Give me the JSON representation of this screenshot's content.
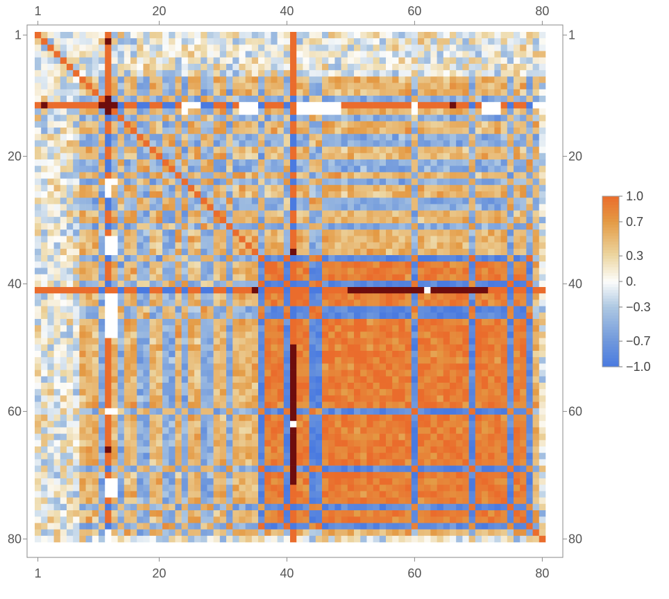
{
  "chart_data": {
    "type": "heatmap",
    "title": "",
    "xlabel": "",
    "ylabel": "",
    "rows": 80,
    "cols": 80,
    "symmetric": true,
    "x_ticks": [
      1,
      20,
      40,
      60,
      80
    ],
    "y_ticks": [
      1,
      20,
      40,
      60,
      80
    ],
    "x_tick_labels": [
      "1",
      "20",
      "40",
      "60",
      "80"
    ],
    "y_tick_labels": [
      "1",
      "20",
      "40",
      "60",
      "80"
    ],
    "ticks_on": [
      "top",
      "bottom",
      "left",
      "right"
    ],
    "value_range": [
      -1.0,
      1.0
    ],
    "colorbar": {
      "position": "right",
      "tick_values": [
        1.0,
        0.7,
        0.3,
        0.0,
        -0.3,
        -0.7,
        -1.0
      ],
      "tick_labels": [
        "1.0",
        "0.7",
        "0.3",
        "0.",
        "−0.3",
        "−0.7",
        "−1.0"
      ],
      "color_stops": [
        {
          "value": -1.0,
          "color": "#4a7ae0"
        },
        {
          "value": -0.7,
          "color": "#6f98dc"
        },
        {
          "value": -0.3,
          "color": "#aec8e2"
        },
        {
          "value": 0.0,
          "color": "#fdfdfb"
        },
        {
          "value": 0.3,
          "color": "#ecd6a2"
        },
        {
          "value": 0.7,
          "color": "#e49a44"
        },
        {
          "value": 1.0,
          "color": "#ea6c2c"
        }
      ]
    },
    "special_colors": {
      "missing": "#ffffff",
      "out_of_range": "#6e0d0d"
    },
    "diagonal_value": 1.0,
    "block_group": [
      8,
      9,
      10,
      12,
      13,
      15,
      16,
      19,
      20,
      23,
      25,
      26,
      29,
      30,
      32,
      33,
      34,
      35,
      37,
      38,
      39,
      41,
      42,
      43,
      46,
      47,
      48,
      49,
      50,
      51,
      52,
      53,
      54,
      55,
      56,
      57,
      58,
      59,
      61,
      62,
      63,
      64,
      65,
      66,
      67,
      68,
      70,
      71,
      72,
      73,
      74,
      76,
      77,
      79
    ],
    "anti_group": [
      11,
      14,
      17,
      18,
      21,
      22,
      24,
      27,
      28,
      31,
      36,
      40,
      44,
      45,
      60,
      69,
      75,
      78
    ],
    "strong_blocks": [
      {
        "from": 36,
        "to": 78,
        "value": 0.85
      }
    ],
    "special_rows": [
      {
        "row": 12,
        "mode": "saturated"
      },
      {
        "row": 41,
        "mode": "saturated"
      }
    ],
    "missing_cells": [
      [
        12,
        24
      ],
      [
        12,
        25
      ],
      [
        12,
        26
      ],
      [
        12,
        33
      ],
      [
        12,
        34
      ],
      [
        12,
        35
      ],
      [
        12,
        42
      ],
      [
        12,
        43
      ],
      [
        12,
        44
      ],
      [
        12,
        45
      ],
      [
        12,
        46
      ],
      [
        12,
        47
      ],
      [
        12,
        48
      ],
      [
        12,
        60
      ],
      [
        12,
        71
      ],
      [
        12,
        72
      ],
      [
        12,
        73
      ],
      [
        12,
        79
      ],
      [
        12,
        80
      ],
      [
        13,
        24
      ],
      [
        13,
        33
      ],
      [
        13,
        34
      ],
      [
        13,
        35
      ],
      [
        13,
        42
      ],
      [
        13,
        43
      ],
      [
        13,
        44
      ],
      [
        13,
        45
      ],
      [
        13,
        46
      ],
      [
        13,
        47
      ],
      [
        13,
        48
      ],
      [
        13,
        60
      ],
      [
        13,
        71
      ],
      [
        13,
        72
      ],
      [
        13,
        73
      ],
      [
        41,
        62
      ]
    ],
    "out_of_range_cells": [
      [
        12,
        2
      ],
      [
        12,
        11
      ],
      [
        12,
        12
      ],
      [
        12,
        13
      ],
      [
        12,
        66
      ],
      [
        41,
        35
      ],
      [
        41,
        50
      ],
      [
        41,
        51
      ],
      [
        41,
        52
      ],
      [
        41,
        53
      ],
      [
        41,
        54
      ],
      [
        41,
        55
      ],
      [
        41,
        56
      ],
      [
        41,
        57
      ],
      [
        41,
        58
      ],
      [
        41,
        59
      ],
      [
        41,
        60
      ],
      [
        41,
        61
      ],
      [
        41,
        63
      ],
      [
        41,
        64
      ],
      [
        41,
        65
      ],
      [
        41,
        66
      ],
      [
        41,
        67
      ],
      [
        41,
        68
      ],
      [
        41,
        69
      ],
      [
        41,
        70
      ],
      [
        41,
        71
      ]
    ],
    "seed": 20240611
  }
}
